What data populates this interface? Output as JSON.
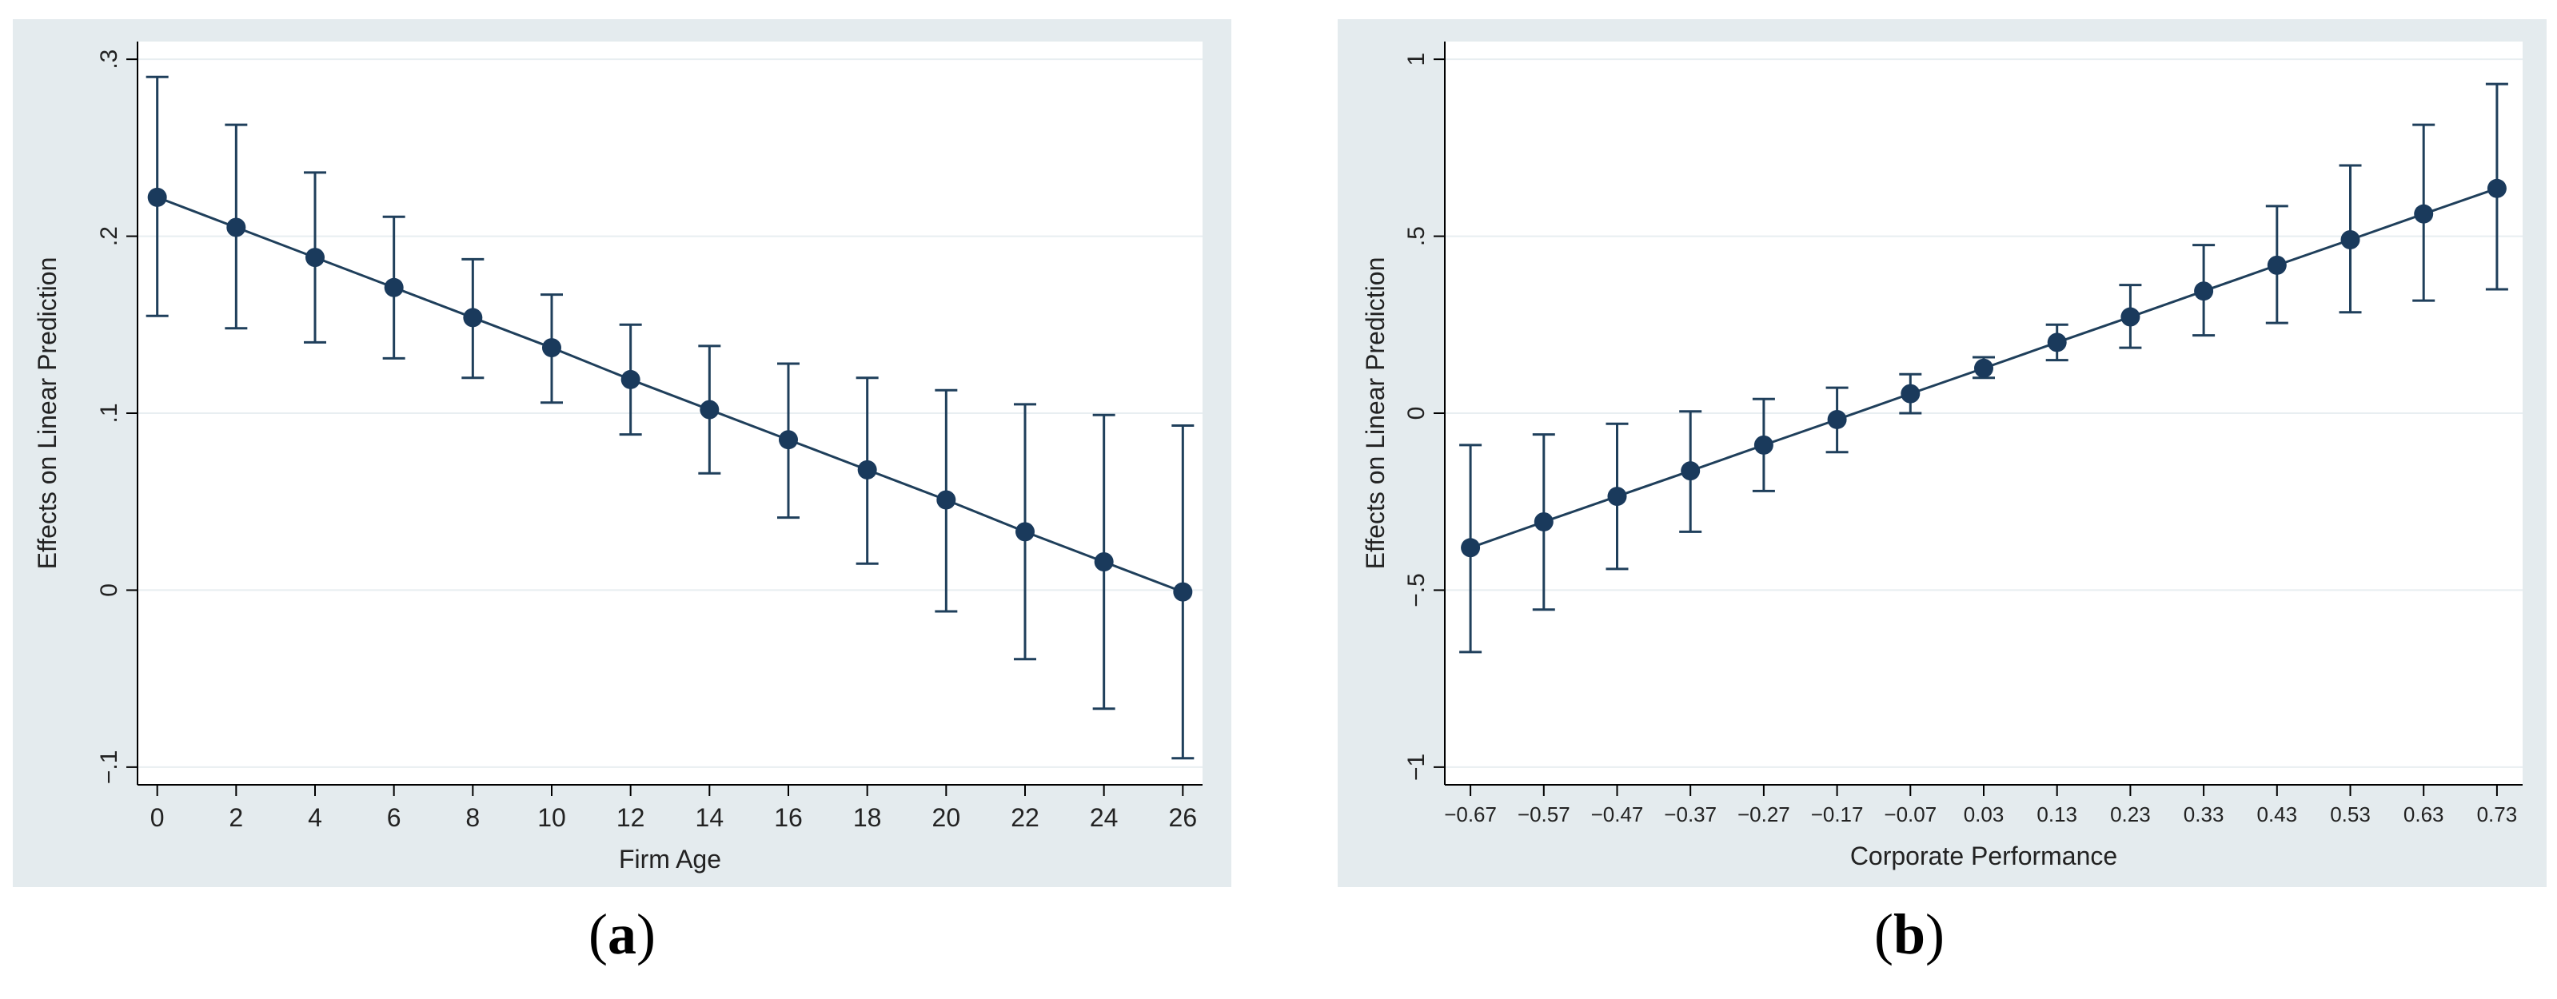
{
  "chart_data": [
    {
      "type": "line",
      "panel_label": "a",
      "title": "",
      "xlabel": "Firm Age",
      "ylabel": "Effects on Linear Prediction",
      "x": [
        0,
        2,
        4,
        6,
        8,
        10,
        12,
        14,
        16,
        18,
        20,
        22,
        24,
        26
      ],
      "x_tick_labels": [
        "0",
        "2",
        "4",
        "6",
        "8",
        "10",
        "12",
        "14",
        "16",
        "18",
        "20",
        "22",
        "24",
        "26"
      ],
      "y_ticks": [
        -0.1,
        0,
        0.1,
        0.2,
        0.3
      ],
      "y_tick_labels": [
        "−.1",
        "0",
        ".1",
        ".2",
        ".3"
      ],
      "ylim": [
        -0.11,
        0.31
      ],
      "xlim": [
        -0.5,
        26.5
      ],
      "series": [
        {
          "name": "Effects on Linear Prediction",
          "values": [
            0.222,
            0.205,
            0.188,
            0.171,
            0.154,
            0.137,
            0.119,
            0.102,
            0.085,
            0.068,
            0.051,
            0.033,
            0.016,
            -0.001
          ],
          "ci_lower": [
            0.155,
            0.148,
            0.14,
            0.131,
            0.12,
            0.106,
            0.088,
            0.066,
            0.041,
            0.015,
            -0.012,
            -0.039,
            -0.067,
            -0.095
          ],
          "ci_upper": [
            0.29,
            0.263,
            0.236,
            0.211,
            0.187,
            0.167,
            0.15,
            0.138,
            0.128,
            0.12,
            0.113,
            0.105,
            0.099,
            0.093
          ]
        }
      ],
      "grid": true,
      "colors": {
        "line": "#1f3f5b",
        "marker": "#1a3a5c",
        "grid": "#e8eef1",
        "frame": "#e4ebee",
        "axis": "#000000"
      }
    },
    {
      "type": "line",
      "panel_label": "b",
      "title": "",
      "xlabel": "Corporate Performance",
      "ylabel": "Effects on Linear Prediction",
      "x": [
        -0.67,
        -0.57,
        -0.47,
        -0.37,
        -0.27,
        -0.17,
        -0.07,
        0.03,
        0.13,
        0.23,
        0.33,
        0.43,
        0.53,
        0.63,
        0.73
      ],
      "x_tick_labels": [
        "−0.67",
        "−0.57",
        "−0.47",
        "−0.37",
        "−0.27",
        "−0.17",
        "−0.07",
        "0.03",
        "0.13",
        "0.23",
        "0.33",
        "0.43",
        "0.53",
        "0.63",
        "0.73"
      ],
      "y_ticks": [
        -1,
        -0.5,
        0,
        0.5,
        1
      ],
      "y_tick_labels": [
        "−1",
        "−.5",
        "0",
        ".5",
        "1"
      ],
      "ylim": [
        -1.05,
        1.05
      ],
      "xlim": [
        -0.705,
        0.765
      ],
      "series": [
        {
          "name": "Effects on Linear Prediction",
          "values": [
            -0.38,
            -0.307,
            -0.235,
            -0.163,
            -0.09,
            -0.018,
            0.055,
            0.127,
            0.2,
            0.272,
            0.345,
            0.418,
            0.49,
            0.563,
            0.635
          ],
          "ci_lower": [
            -0.675,
            -0.555,
            -0.44,
            -0.335,
            -0.22,
            -0.11,
            0.0,
            0.1,
            0.15,
            0.185,
            0.22,
            0.255,
            0.285,
            0.318,
            0.35
          ],
          "ci_upper": [
            -0.09,
            -0.06,
            -0.03,
            0.005,
            0.04,
            0.072,
            0.11,
            0.158,
            0.25,
            0.362,
            0.475,
            0.585,
            0.7,
            0.815,
            0.93
          ]
        }
      ],
      "grid": true,
      "colors": {
        "line": "#1f3f5b",
        "marker": "#1a3a5c",
        "grid": "#e8eef1",
        "frame": "#e4ebee",
        "axis": "#000000"
      }
    }
  ],
  "captions": {
    "a": "a",
    "b": "b"
  }
}
